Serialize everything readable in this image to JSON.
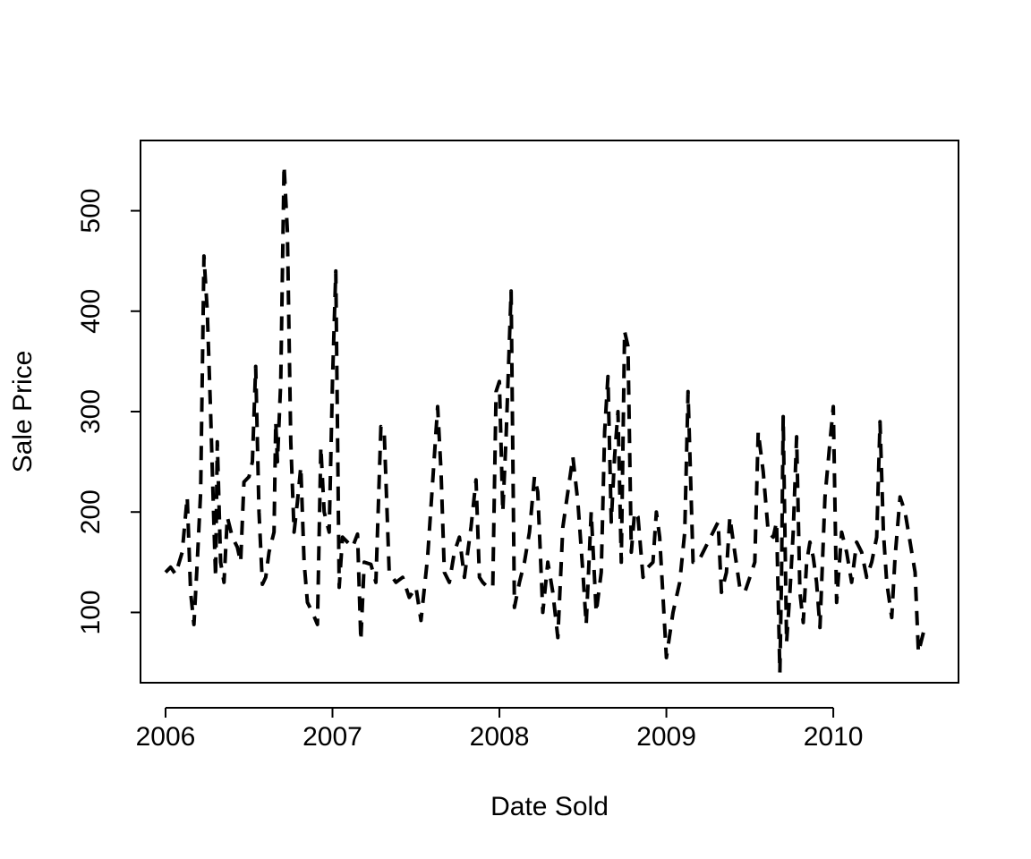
{
  "chart_data": {
    "type": "line",
    "title": "",
    "xlabel": "Date Sold",
    "ylabel": "Sale Price",
    "xlim": [
      2005.85,
      2010.75
    ],
    "ylim": [
      30,
      570
    ],
    "x_ticks": [
      2006,
      2007,
      2008,
      2009,
      2010
    ],
    "y_ticks": [
      100,
      200,
      300,
      400,
      500
    ],
    "grid": false,
    "legend": "none",
    "line_style": "dashed",
    "line_color": "#000000",
    "series": [
      {
        "values": [
          [
            2006.0,
            140
          ],
          [
            2006.03,
            145
          ],
          [
            2006.06,
            138
          ],
          [
            2006.1,
            160
          ],
          [
            2006.13,
            215
          ],
          [
            2006.15,
            120
          ],
          [
            2006.17,
            88
          ],
          [
            2006.19,
            150
          ],
          [
            2006.21,
            220
          ],
          [
            2006.23,
            455
          ],
          [
            2006.25,
            400
          ],
          [
            2006.27,
            300
          ],
          [
            2006.29,
            185
          ],
          [
            2006.3,
            135
          ],
          [
            2006.31,
            270
          ],
          [
            2006.33,
            150
          ],
          [
            2006.35,
            130
          ],
          [
            2006.37,
            195
          ],
          [
            2006.4,
            175
          ],
          [
            2006.43,
            165
          ],
          [
            2006.45,
            150
          ],
          [
            2006.47,
            230
          ],
          [
            2006.5,
            235
          ],
          [
            2006.52,
            250
          ],
          [
            2006.54,
            345
          ],
          [
            2006.56,
            200
          ],
          [
            2006.58,
            128
          ],
          [
            2006.6,
            135
          ],
          [
            2006.62,
            160
          ],
          [
            2006.65,
            180
          ],
          [
            2006.66,
            290
          ],
          [
            2006.67,
            250
          ],
          [
            2006.69,
            330
          ],
          [
            2006.71,
            545
          ],
          [
            2006.73,
            480
          ],
          [
            2006.75,
            270
          ],
          [
            2006.77,
            180
          ],
          [
            2006.79,
            210
          ],
          [
            2006.81,
            245
          ],
          [
            2006.83,
            150
          ],
          [
            2006.85,
            110
          ],
          [
            2006.88,
            100
          ],
          [
            2006.91,
            88
          ],
          [
            2006.93,
            265
          ],
          [
            2006.95,
            200
          ],
          [
            2006.98,
            180
          ],
          [
            2007.0,
            330
          ],
          [
            2007.02,
            440
          ],
          [
            2007.04,
            125
          ],
          [
            2007.06,
            175
          ],
          [
            2007.09,
            170
          ],
          [
            2007.12,
            165
          ],
          [
            2007.15,
            178
          ],
          [
            2007.17,
            72
          ],
          [
            2007.19,
            150
          ],
          [
            2007.23,
            148
          ],
          [
            2007.26,
            130
          ],
          [
            2007.29,
            285
          ],
          [
            2007.31,
            280
          ],
          [
            2007.34,
            140
          ],
          [
            2007.38,
            130
          ],
          [
            2007.42,
            135
          ],
          [
            2007.46,
            115
          ],
          [
            2007.5,
            125
          ],
          [
            2007.53,
            92
          ],
          [
            2007.57,
            155
          ],
          [
            2007.61,
            255
          ],
          [
            2007.63,
            305
          ],
          [
            2007.65,
            240
          ],
          [
            2007.67,
            140
          ],
          [
            2007.7,
            130
          ],
          [
            2007.73,
            160
          ],
          [
            2007.76,
            175
          ],
          [
            2007.79,
            135
          ],
          [
            2007.83,
            185
          ],
          [
            2007.86,
            232
          ],
          [
            2007.88,
            135
          ],
          [
            2007.9,
            130
          ],
          [
            2007.93,
            125
          ],
          [
            2007.96,
            125
          ],
          [
            2007.98,
            320
          ],
          [
            2008.0,
            330
          ],
          [
            2008.02,
            200
          ],
          [
            2008.04,
            275
          ],
          [
            2008.07,
            420
          ],
          [
            2008.09,
            105
          ],
          [
            2008.12,
            130
          ],
          [
            2008.15,
            150
          ],
          [
            2008.18,
            180
          ],
          [
            2008.21,
            235
          ],
          [
            2008.23,
            220
          ],
          [
            2008.26,
            100
          ],
          [
            2008.29,
            150
          ],
          [
            2008.32,
            120
          ],
          [
            2008.35,
            75
          ],
          [
            2008.38,
            185
          ],
          [
            2008.41,
            220
          ],
          [
            2008.44,
            255
          ],
          [
            2008.47,
            210
          ],
          [
            2008.5,
            140
          ],
          [
            2008.52,
            88
          ],
          [
            2008.55,
            200
          ],
          [
            2008.58,
            100
          ],
          [
            2008.61,
            140
          ],
          [
            2008.63,
            280
          ],
          [
            2008.65,
            335
          ],
          [
            2008.67,
            190
          ],
          [
            2008.69,
            255
          ],
          [
            2008.71,
            300
          ],
          [
            2008.73,
            150
          ],
          [
            2008.75,
            380
          ],
          [
            2008.77,
            365
          ],
          [
            2008.79,
            160
          ],
          [
            2008.81,
            200
          ],
          [
            2008.83,
            195
          ],
          [
            2008.86,
            135
          ],
          [
            2008.89,
            145
          ],
          [
            2008.92,
            150
          ],
          [
            2008.94,
            200
          ],
          [
            2008.96,
            175
          ],
          [
            2009.0,
            55
          ],
          [
            2009.04,
            100
          ],
          [
            2009.08,
            130
          ],
          [
            2009.11,
            180
          ],
          [
            2009.13,
            320
          ],
          [
            2009.16,
            150
          ],
          [
            2009.19,
            150
          ],
          [
            2009.31,
            190
          ],
          [
            2009.33,
            120
          ],
          [
            2009.36,
            140
          ],
          [
            2009.38,
            195
          ],
          [
            2009.41,
            160
          ],
          [
            2009.44,
            125
          ],
          [
            2009.47,
            120
          ],
          [
            2009.5,
            135
          ],
          [
            2009.53,
            150
          ],
          [
            2009.55,
            280
          ],
          [
            2009.58,
            240
          ],
          [
            2009.61,
            180
          ],
          [
            2009.64,
            175
          ],
          [
            2009.66,
            190
          ],
          [
            2009.68,
            40
          ],
          [
            2009.69,
            140
          ],
          [
            2009.7,
            295
          ],
          [
            2009.72,
            70
          ],
          [
            2009.74,
            120
          ],
          [
            2009.76,
            180
          ],
          [
            2009.78,
            275
          ],
          [
            2009.8,
            120
          ],
          [
            2009.82,
            90
          ],
          [
            2009.84,
            150
          ],
          [
            2009.86,
            170
          ],
          [
            2009.88,
            155
          ],
          [
            2009.9,
            130
          ],
          [
            2009.92,
            85
          ],
          [
            2009.95,
            215
          ],
          [
            2009.98,
            270
          ],
          [
            2010.0,
            305
          ],
          [
            2010.02,
            110
          ],
          [
            2010.05,
            180
          ],
          [
            2010.08,
            160
          ],
          [
            2010.11,
            130
          ],
          [
            2010.14,
            170
          ],
          [
            2010.17,
            160
          ],
          [
            2010.2,
            135
          ],
          [
            2010.23,
            150
          ],
          [
            2010.26,
            175
          ],
          [
            2010.28,
            290
          ],
          [
            2010.3,
            180
          ],
          [
            2010.32,
            130
          ],
          [
            2010.35,
            95
          ],
          [
            2010.37,
            155
          ],
          [
            2010.4,
            215
          ],
          [
            2010.43,
            200
          ],
          [
            2010.46,
            170
          ],
          [
            2010.49,
            140
          ],
          [
            2010.51,
            60
          ],
          [
            2010.54,
            80
          ]
        ]
      }
    ]
  }
}
